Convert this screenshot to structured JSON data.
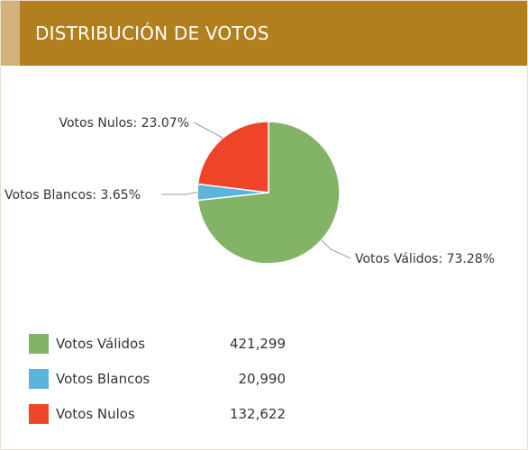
{
  "header": {
    "title": "DISTRIBUCIÓN DE VOTOS"
  },
  "colors": {
    "header": "#b17f1e",
    "accent": "#d2b27a"
  },
  "chart_data": {
    "type": "pie",
    "series": [
      {
        "name": "Votos Válidos",
        "value": 421299,
        "percent": 73.28,
        "color": "#82b366",
        "label": "Votos Válidos: 73.28%",
        "display_value": "421,299"
      },
      {
        "name": "Votos Blancos",
        "value": 20990,
        "percent": 3.65,
        "color": "#5ab4dc",
        "label": "Votos Blancos: 3.65%",
        "display_value": "20,990"
      },
      {
        "name": "Votos Nulos",
        "value": 132622,
        "percent": 23.07,
        "color": "#f0442a",
        "label": "Votos Nulos: 23.07%",
        "display_value": "132,622"
      }
    ]
  }
}
